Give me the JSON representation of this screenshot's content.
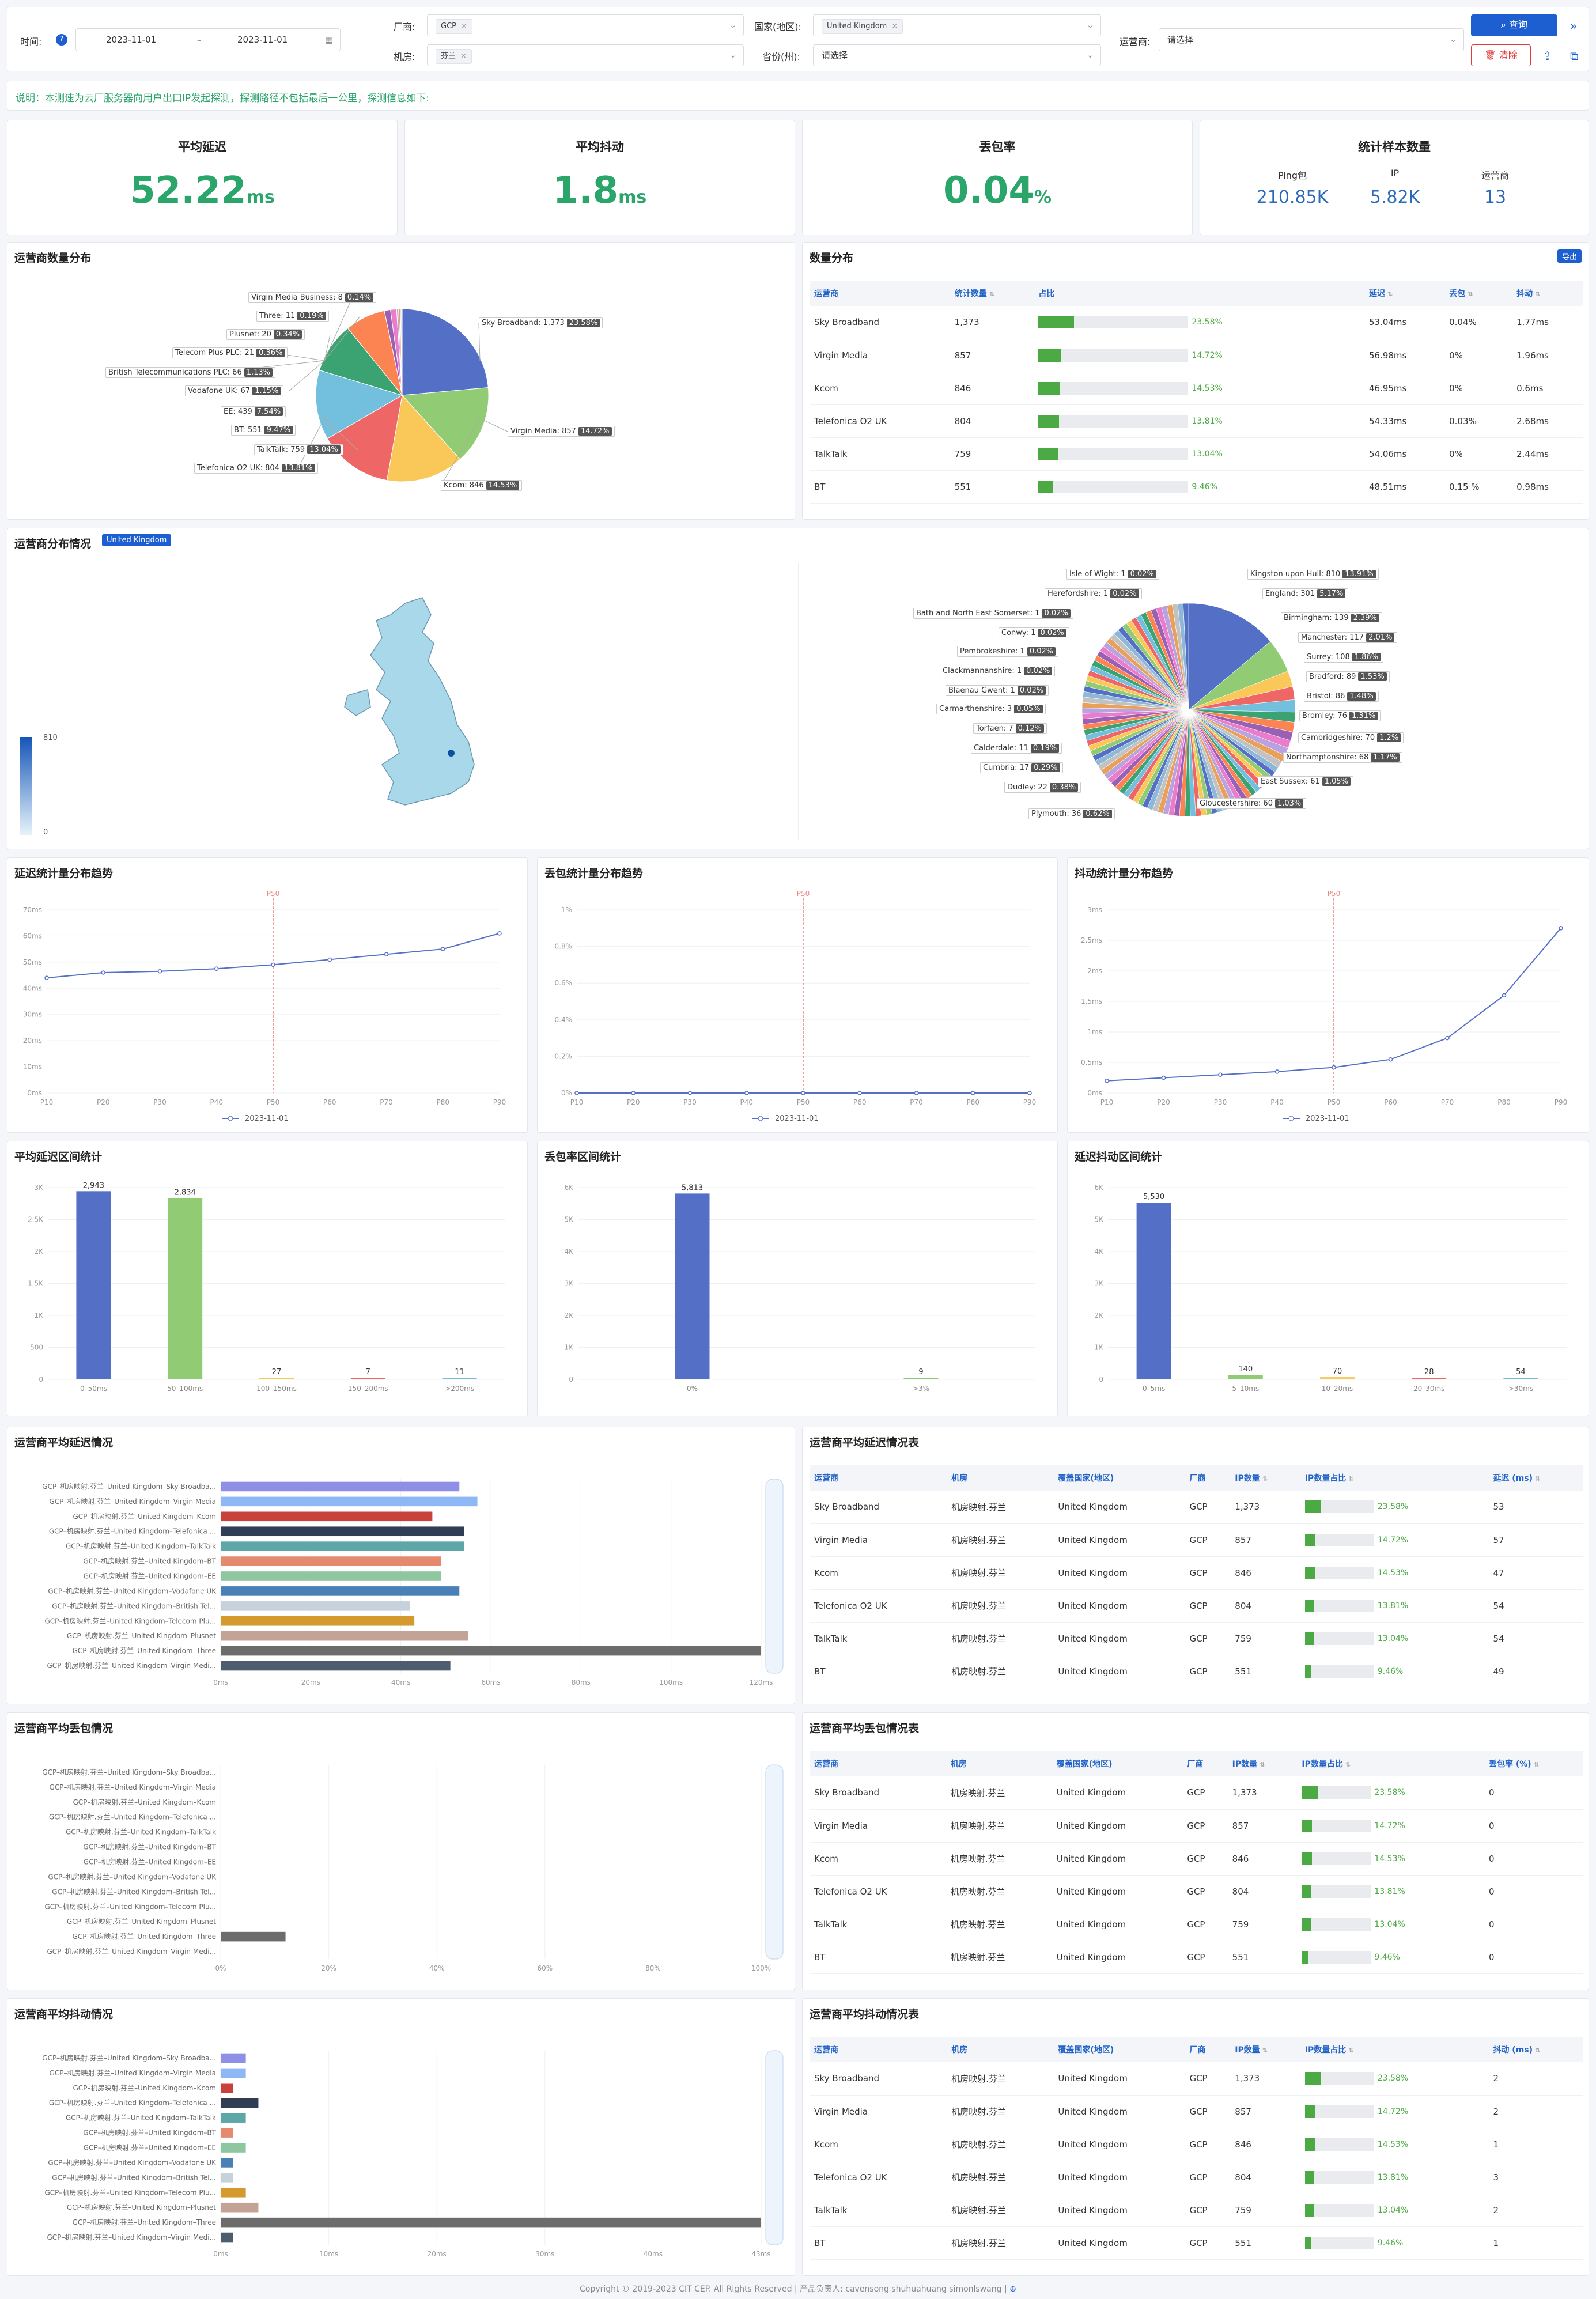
{
  "filters": {
    "time_label": "时间:",
    "date_start": "2023-11-01",
    "date_sep": "–",
    "date_end": "2023-11-01",
    "vendor_label": "厂商:",
    "vendor_tag": "GCP",
    "room_label": "机房:",
    "room_tag": "芬兰",
    "country_label": "国家(地区):",
    "country_tag": "United Kingdom",
    "province_label": "省份(州):",
    "province_value": "请选择",
    "isp_label": "运营商:",
    "isp_value": "请选择",
    "query_button": "查询",
    "clear_button": "清除"
  },
  "notice": "说明：本测速为云厂服务器向用户出口IP发起探测，探测路径不包括最后一公里，探测信息如下:",
  "kpis": {
    "latency": {
      "title": "平均延迟",
      "value": "52.22",
      "unit": "ms"
    },
    "jitter": {
      "title": "平均抖动",
      "value": "1.8",
      "unit": "ms"
    },
    "loss": {
      "title": "丢包率",
      "value": "0.04",
      "unit": "%"
    },
    "samples": {
      "title": "统计样本数量",
      "ping_label": "Ping包",
      "ping_value": "210.85K",
      "ip_label": "IP",
      "ip_value": "5.82K",
      "isp_label": "运营商",
      "isp_value": "13"
    }
  },
  "isp_pie": {
    "title": "运营商数量分布",
    "labels": [
      {
        "name": "Virgin Media Business",
        "count": "8",
        "pct": "0.14%"
      },
      {
        "name": "Three",
        "count": "11",
        "pct": "0.19%"
      },
      {
        "name": "Plusnet",
        "count": "20",
        "pct": "0.34%"
      },
      {
        "name": "Telecom Plus PLC",
        "count": "21",
        "pct": "0.36%"
      },
      {
        "name": "British Telecommunications PLC",
        "count": "66",
        "pct": "1.13%"
      },
      {
        "name": "Vodafone UK",
        "count": "67",
        "pct": "1.15%"
      },
      {
        "name": "EE",
        "count": "439",
        "pct": "7.54%"
      },
      {
        "name": "BT",
        "count": "551",
        "pct": "9.47%"
      },
      {
        "name": "TalkTalk",
        "count": "759",
        "pct": "13.04%"
      },
      {
        "name": "Telefonica O2 UK",
        "count": "804",
        "pct": "13.81%"
      },
      {
        "name": "Sky Broadband",
        "count": "1,373",
        "pct": "23.58%"
      },
      {
        "name": "Virgin Media",
        "count": "857",
        "pct": "14.72%"
      },
      {
        "name": "Kcom",
        "count": "846",
        "pct": "14.53%"
      }
    ]
  },
  "qty_table": {
    "title": "数量分布",
    "export_button": "导出",
    "headers": [
      "运营商",
      "统计数量",
      "占比",
      "延迟",
      "丢包",
      "抖动"
    ],
    "rows": [
      {
        "isp": "Sky Broadband",
        "count": "1,373",
        "pct": "23.58%",
        "fill": 0.2358,
        "lat": "53.04ms",
        "loss": "0.04%",
        "jit": "1.77ms"
      },
      {
        "isp": "Virgin Media",
        "count": "857",
        "pct": "14.72%",
        "fill": 0.1472,
        "lat": "56.98ms",
        "loss": "0%",
        "jit": "1.96ms"
      },
      {
        "isp": "Kcom",
        "count": "846",
        "pct": "14.53%",
        "fill": 0.1453,
        "lat": "46.95ms",
        "loss": "0%",
        "jit": "0.6ms"
      },
      {
        "isp": "Telefonica O2 UK",
        "count": "804",
        "pct": "13.81%",
        "fill": 0.1381,
        "lat": "54.33ms",
        "loss": "0.03%",
        "jit": "2.68ms"
      },
      {
        "isp": "TalkTalk",
        "count": "759",
        "pct": "13.04%",
        "fill": 0.1304,
        "lat": "54.06ms",
        "loss": "0%",
        "jit": "2.44ms"
      },
      {
        "isp": "BT",
        "count": "551",
        "pct": "9.46%",
        "fill": 0.0946,
        "lat": "48.51ms",
        "loss": "0.15 %",
        "jit": "0.98ms"
      }
    ]
  },
  "region": {
    "title": "运营商分布情况",
    "badge": "United Kingdom",
    "legend_max": "810",
    "legend_min": "0",
    "labels": [
      {
        "name": "Isle of Wight",
        "count": "1",
        "pct": "0.02%"
      },
      {
        "name": "Herefordshire",
        "count": "1",
        "pct": "0.02%"
      },
      {
        "name": "Bath and North East Somerset",
        "count": "1",
        "pct": "0.02%"
      },
      {
        "name": "Conwy",
        "count": "1",
        "pct": "0.02%"
      },
      {
        "name": "Pembrokeshire",
        "count": "1",
        "pct": "0.02%"
      },
      {
        "name": "Clackmannanshire",
        "count": "1",
        "pct": "0.02%"
      },
      {
        "name": "Blaenau Gwent",
        "count": "1",
        "pct": "0.02%"
      },
      {
        "name": "Carmarthenshire",
        "count": "3",
        "pct": "0.05%"
      },
      {
        "name": "Torfaen",
        "count": "7",
        "pct": "0.12%"
      },
      {
        "name": "Calderdale",
        "count": "11",
        "pct": "0.19%"
      },
      {
        "name": "Cumbria",
        "count": "17",
        "pct": "0.29%"
      },
      {
        "name": "Dudley",
        "count": "22",
        "pct": "0.38%"
      },
      {
        "name": "Plymouth",
        "count": "36",
        "pct": "0.62%"
      },
      {
        "name": "Kingston upon Hull",
        "count": "810",
        "pct": "13.91%"
      },
      {
        "name": "England",
        "count": "301",
        "pct": "5.17%"
      },
      {
        "name": "Birmingham",
        "count": "139",
        "pct": "2.39%"
      },
      {
        "name": "Manchester",
        "count": "117",
        "pct": "2.01%"
      },
      {
        "name": "Surrey",
        "count": "108",
        "pct": "1.86%"
      },
      {
        "name": "Bradford",
        "count": "89",
        "pct": "1.53%"
      },
      {
        "name": "Bristol",
        "count": "86",
        "pct": "1.48%"
      },
      {
        "name": "Bromley",
        "count": "76",
        "pct": "1.31%"
      },
      {
        "name": "Cambridgeshire",
        "count": "70",
        "pct": "1.2%"
      },
      {
        "name": "Northamptonshire",
        "count": "68",
        "pct": "1.17%"
      },
      {
        "name": "East Sussex",
        "count": "61",
        "pct": "1.05%"
      },
      {
        "name": "Gloucestershire",
        "count": "60",
        "pct": "1.03%"
      }
    ]
  },
  "chart_data": [
    {
      "type": "line",
      "title": "延迟统计量分布趋势",
      "x": [
        "P10",
        "P20",
        "P30",
        "P40",
        "P50",
        "P60",
        "P70",
        "P80",
        "P90"
      ],
      "marker": "P50",
      "yticks": [
        "0ms",
        "10ms",
        "20ms",
        "30ms",
        "40ms",
        "50ms",
        "60ms",
        "70ms"
      ],
      "ylim": [
        0,
        70
      ],
      "series": [
        {
          "name": "2023-11-01",
          "values": [
            44,
            46,
            46.5,
            47.5,
            49,
            51,
            53,
            55,
            61
          ]
        }
      ]
    },
    {
      "type": "line",
      "title": "丢包统计量分布趋势",
      "x": [
        "P10",
        "P20",
        "P30",
        "P40",
        "P50",
        "P60",
        "P70",
        "P80",
        "P90"
      ],
      "marker": "P50",
      "yticks": [
        "0%",
        "0.2%",
        "0.4%",
        "0.6%",
        "0.8%",
        "1%"
      ],
      "ylim": [
        0,
        1
      ],
      "series": [
        {
          "name": "2023-11-01",
          "values": [
            0,
            0,
            0,
            0,
            0,
            0,
            0,
            0,
            0
          ]
        }
      ]
    },
    {
      "type": "line",
      "title": "抖动统计量分布趋势",
      "x": [
        "P10",
        "P20",
        "P30",
        "P40",
        "P50",
        "P60",
        "P70",
        "P80",
        "P90"
      ],
      "marker": "P50",
      "yticks": [
        "0ms",
        "0.5ms",
        "1ms",
        "1.5ms",
        "2ms",
        "2.5ms",
        "3ms"
      ],
      "ylim": [
        0,
        3
      ],
      "series": [
        {
          "name": "2023-11-01",
          "values": [
            0.2,
            0.25,
            0.3,
            0.35,
            0.42,
            0.55,
            0.9,
            1.6,
            2.7
          ]
        }
      ]
    },
    {
      "type": "bar",
      "title": "平均延迟区间统计",
      "categories": [
        "0–50ms",
        "50–100ms",
        "100–150ms",
        "150–200ms",
        ">200ms"
      ],
      "values": [
        2943,
        2834,
        27,
        7,
        11
      ],
      "labels": [
        "2,943",
        "2,834",
        "27",
        "7",
        "11"
      ],
      "yticks": [
        "0",
        "500",
        "1K",
        "1.5K",
        "2K",
        "2.5K",
        "3K"
      ],
      "ylim": [
        0,
        3000
      ]
    },
    {
      "type": "bar",
      "title": "丢包率区间统计",
      "categories": [
        "0%",
        ">3%"
      ],
      "values": [
        5813,
        9
      ],
      "labels": [
        "5,813",
        "9"
      ],
      "yticks": [
        "0",
        "1K",
        "2K",
        "3K",
        "4K",
        "5K",
        "6K"
      ],
      "ylim": [
        0,
        6000
      ]
    },
    {
      "type": "bar",
      "title": "延迟抖动区间统计",
      "categories": [
        "0–5ms",
        "5–10ms",
        "10–20ms",
        "20–30ms",
        ">30ms"
      ],
      "values": [
        5530,
        140,
        70,
        28,
        54
      ],
      "labels": [
        "5,530",
        "140",
        "70",
        "28",
        "54"
      ],
      "yticks": [
        "0",
        "1K",
        "2K",
        "3K",
        "4K",
        "5K",
        "6K"
      ],
      "ylim": [
        0,
        6000
      ]
    },
    {
      "type": "bar",
      "title": "运营商平均延迟情况",
      "orientation": "horizontal",
      "categories": [
        "GCP–机房映射.芬兰–United Kingdom–Sky Broadba...",
        "GCP–机房映射.芬兰–United Kingdom–Virgin Media",
        "GCP–机房映射.芬兰–United Kingdom–Kcom",
        "GCP–机房映射.芬兰–United Kingdom–Telefonica ...",
        "GCP–机房映射.芬兰–United Kingdom–TalkTalk",
        "GCP–机房映射.芬兰–United Kingdom–BT",
        "GCP–机房映射.芬兰–United Kingdom–EE",
        "GCP–机房映射.芬兰–United Kingdom–Vodafone UK",
        "GCP–机房映射.芬兰–United Kingdom–British Tel...",
        "GCP–机房映射.芬兰–United Kingdom–Telecom Plu...",
        "GCP–机房映射.芬兰–United Kingdom–Plusnet",
        "GCP–机房映射.芬兰–United Kingdom–Three",
        "GCP–机房映射.芬兰–United Kingdom–Virgin Medi..."
      ],
      "values": [
        53,
        57,
        47,
        54,
        54,
        49,
        49,
        53,
        42,
        43,
        55,
        120,
        51
      ],
      "xticks": [
        "0ms",
        "20ms",
        "40ms",
        "60ms",
        "80ms",
        "100ms",
        "120ms"
      ],
      "xlim": [
        0,
        120
      ]
    },
    {
      "type": "bar",
      "title": "运营商平均丢包情况",
      "orientation": "horizontal",
      "categories": [
        "GCP–机房映射.芬兰–United Kingdom–Sky Broadba...",
        "GCP–机房映射.芬兰–United Kingdom–Virgin Media",
        "GCP–机房映射.芬兰–United Kingdom–Kcom",
        "GCP–机房映射.芬兰–United Kingdom–Telefonica ...",
        "GCP–机房映射.芬兰–United Kingdom–TalkTalk",
        "GCP–机房映射.芬兰–United Kingdom–BT",
        "GCP–机房映射.芬兰–United Kingdom–EE",
        "GCP–机房映射.芬兰–United Kingdom–Vodafone UK",
        "GCP–机房映射.芬兰–United Kingdom–British Tel...",
        "GCP–机房映射.芬兰–United Kingdom–Telecom Plu...",
        "GCP–机房映射.芬兰–United Kingdom–Plusnet",
        "GCP–机房映射.芬兰–United Kingdom–Three",
        "GCP–机房映射.芬兰–United Kingdom–Virgin Medi..."
      ],
      "values": [
        0,
        0,
        0,
        0,
        0,
        0,
        0,
        0,
        0,
        0,
        0,
        12,
        0
      ],
      "xticks": [
        "0%",
        "20%",
        "40%",
        "60%",
        "80%",
        "100%"
      ],
      "xlim": [
        0,
        100
      ]
    },
    {
      "type": "bar",
      "title": "运营商平均抖动情况",
      "orientation": "horizontal",
      "categories": [
        "GCP–机房映射.芬兰–United Kingdom–Sky Broadba...",
        "GCP–机房映射.芬兰–United Kingdom–Virgin Media",
        "GCP–机房映射.芬兰–United Kingdom–Kcom",
        "GCP–机房映射.芬兰–United Kingdom–Telefonica ...",
        "GCP–机房映射.芬兰–United Kingdom–TalkTalk",
        "GCP–机房映射.芬兰–United Kingdom–BT",
        "GCP–机房映射.芬兰–United Kingdom–EE",
        "GCP–机房映射.芬兰–United Kingdom–Vodafone UK",
        "GCP–机房映射.芬兰–United Kingdom–British Tel...",
        "GCP–机房映射.芬兰–United Kingdom–Telecom Plu...",
        "GCP–机房映射.芬兰–United Kingdom–Plusnet",
        "GCP–机房映射.芬兰–United Kingdom–Three",
        "GCP–机房映射.芬兰–United Kingdom–Virgin Medi..."
      ],
      "values": [
        2,
        2,
        1,
        3,
        2,
        1,
        2,
        1,
        1,
        2,
        3,
        43,
        1
      ],
      "xticks": [
        "0ms",
        "10ms",
        "20ms",
        "30ms",
        "40ms",
        "43ms"
      ],
      "xlim": [
        0,
        43
      ]
    }
  ],
  "detail_tables": [
    {
      "title": "运营商平均延迟情况表",
      "headers": [
        "运营商",
        "机房",
        "覆盖国家(地区)",
        "厂商",
        "IP数量",
        "IP数量占比",
        "延迟 (ms)"
      ],
      "rows": [
        {
          "isp": "Sky Broadband",
          "room": "机房映射.芬兰",
          "country": "United Kingdom",
          "vendor": "GCP",
          "ip": "1,373",
          "pct": "23.58%",
          "fill": 0.2358,
          "val": "53"
        },
        {
          "isp": "Virgin Media",
          "room": "机房映射.芬兰",
          "country": "United Kingdom",
          "vendor": "GCP",
          "ip": "857",
          "pct": "14.72%",
          "fill": 0.1472,
          "val": "57"
        },
        {
          "isp": "Kcom",
          "room": "机房映射.芬兰",
          "country": "United Kingdom",
          "vendor": "GCP",
          "ip": "846",
          "pct": "14.53%",
          "fill": 0.1453,
          "val": "47"
        },
        {
          "isp": "Telefonica O2 UK",
          "room": "机房映射.芬兰",
          "country": "United Kingdom",
          "vendor": "GCP",
          "ip": "804",
          "pct": "13.81%",
          "fill": 0.1381,
          "val": "54"
        },
        {
          "isp": "TalkTalk",
          "room": "机房映射.芬兰",
          "country": "United Kingdom",
          "vendor": "GCP",
          "ip": "759",
          "pct": "13.04%",
          "fill": 0.1304,
          "val": "54"
        },
        {
          "isp": "BT",
          "room": "机房映射.芬兰",
          "country": "United Kingdom",
          "vendor": "GCP",
          "ip": "551",
          "pct": "9.46%",
          "fill": 0.0946,
          "val": "49"
        }
      ]
    },
    {
      "title": "运营商平均丢包情况表",
      "headers": [
        "运营商",
        "机房",
        "覆盖国家(地区)",
        "厂商",
        "IP数量",
        "IP数量占比",
        "丢包率 (%)"
      ],
      "rows": [
        {
          "isp": "Sky Broadband",
          "room": "机房映射.芬兰",
          "country": "United Kingdom",
          "vendor": "GCP",
          "ip": "1,373",
          "pct": "23.58%",
          "fill": 0.2358,
          "val": "0"
        },
        {
          "isp": "Virgin Media",
          "room": "机房映射.芬兰",
          "country": "United Kingdom",
          "vendor": "GCP",
          "ip": "857",
          "pct": "14.72%",
          "fill": 0.1472,
          "val": "0"
        },
        {
          "isp": "Kcom",
          "room": "机房映射.芬兰",
          "country": "United Kingdom",
          "vendor": "GCP",
          "ip": "846",
          "pct": "14.53%",
          "fill": 0.1453,
          "val": "0"
        },
        {
          "isp": "Telefonica O2 UK",
          "room": "机房映射.芬兰",
          "country": "United Kingdom",
          "vendor": "GCP",
          "ip": "804",
          "pct": "13.81%",
          "fill": 0.1381,
          "val": "0"
        },
        {
          "isp": "TalkTalk",
          "room": "机房映射.芬兰",
          "country": "United Kingdom",
          "vendor": "GCP",
          "ip": "759",
          "pct": "13.04%",
          "fill": 0.1304,
          "val": "0"
        },
        {
          "isp": "BT",
          "room": "机房映射.芬兰",
          "country": "United Kingdom",
          "vendor": "GCP",
          "ip": "551",
          "pct": "9.46%",
          "fill": 0.0946,
          "val": "0"
        }
      ]
    },
    {
      "title": "运营商平均抖动情况表",
      "headers": [
        "运营商",
        "机房",
        "覆盖国家(地区)",
        "厂商",
        "IP数量",
        "IP数量占比",
        "抖动 (ms)"
      ],
      "rows": [
        {
          "isp": "Sky Broadband",
          "room": "机房映射.芬兰",
          "country": "United Kingdom",
          "vendor": "GCP",
          "ip": "1,373",
          "pct": "23.58%",
          "fill": 0.2358,
          "val": "2"
        },
        {
          "isp": "Virgin Media",
          "room": "机房映射.芬兰",
          "country": "United Kingdom",
          "vendor": "GCP",
          "ip": "857",
          "pct": "14.72%",
          "fill": 0.1472,
          "val": "2"
        },
        {
          "isp": "Kcom",
          "room": "机房映射.芬兰",
          "country": "United Kingdom",
          "vendor": "GCP",
          "ip": "846",
          "pct": "14.53%",
          "fill": 0.1453,
          "val": "1"
        },
        {
          "isp": "Telefonica O2 UK",
          "room": "机房映射.芬兰",
          "country": "United Kingdom",
          "vendor": "GCP",
          "ip": "804",
          "pct": "13.81%",
          "fill": 0.1381,
          "val": "3"
        },
        {
          "isp": "TalkTalk",
          "room": "机房映射.芬兰",
          "country": "United Kingdom",
          "vendor": "GCP",
          "ip": "759",
          "pct": "13.04%",
          "fill": 0.1304,
          "val": "2"
        },
        {
          "isp": "BT",
          "room": "机房映射.芬兰",
          "country": "United Kingdom",
          "vendor": "GCP",
          "ip": "551",
          "pct": "9.46%",
          "fill": 0.0946,
          "val": "1"
        }
      ]
    }
  ],
  "legend_date": "2023-11-01",
  "footer": "Copyright © 2019-2023  CIT CEP.  All Rights Reserved  |  产品负责人: cavensong shuhuahuang simonlswang  |",
  "colors": {
    "primary": "#1d5fd0",
    "green": "#2aa66b",
    "danger": "#e03c3c",
    "bar": "#4caa44"
  }
}
